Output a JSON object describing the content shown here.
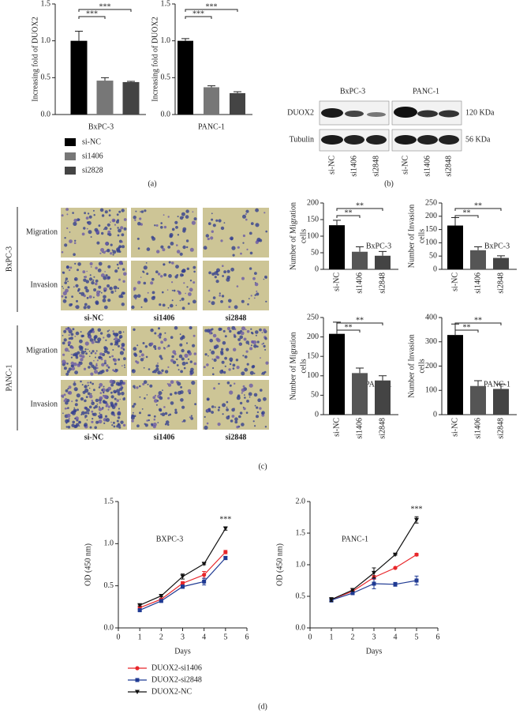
{
  "panels": [
    "(a)",
    "(b)",
    "(c)",
    "(d)"
  ],
  "legend_a": [
    {
      "name": "si-NC",
      "color": "#000000"
    },
    {
      "name": "si1406",
      "color": "#777777"
    },
    {
      "name": "si2828",
      "color": "#444444"
    }
  ],
  "legend_d": [
    {
      "name": "DUOX2-si1406",
      "color": "#e8262a",
      "marker": "circle"
    },
    {
      "name": "DUOX2-si2848",
      "color": "#1f3a93",
      "marker": "square"
    },
    {
      "name": "DUOX2-NC",
      "color": "#111111",
      "marker": "triangle-down"
    }
  ],
  "blot": {
    "cell_lines": [
      "BxPC-3",
      "PANC-1"
    ],
    "rows": [
      "DUOX2",
      "Tubulin"
    ],
    "sizes": [
      "120 KDa",
      "56 KDa"
    ],
    "lanes": [
      "si-NC",
      "si1406",
      "si2848",
      "si-NC",
      "si1406",
      "si2848"
    ]
  },
  "micro": {
    "groups": [
      "BxPC-3",
      "PANC-1"
    ],
    "rows": [
      "Migration",
      "Invasion"
    ],
    "columns": [
      "si-NC",
      "si1406",
      "si2848"
    ]
  },
  "chart_data": [
    {
      "type": "bar",
      "ylabel": "Increasing fold of DUOX2",
      "xlabel": "BxPC-3",
      "values": [
        1.0,
        0.46,
        0.44
      ],
      "errors": [
        0.13,
        0.04,
        0.01
      ],
      "colors": [
        "#000000",
        "#777777",
        "#444444"
      ],
      "ylim": [
        0,
        1.5
      ],
      "yticks": [
        {
          "value": 0,
          "label": "0.0"
        },
        0.5,
        {
          "value": 1,
          "label": "1.0"
        },
        1.5
      ],
      "comparisons": [
        {
          "between": [
            0,
            1
          ],
          "label": "***"
        },
        {
          "between": [
            0,
            2
          ],
          "label": "***"
        }
      ]
    },
    {
      "type": "bar",
      "ylabel": "Increasing fold of DUOX2",
      "xlabel": "PANC-1",
      "values": [
        1.0,
        0.37,
        0.29
      ],
      "errors": [
        0.03,
        0.02,
        0.02
      ],
      "colors": [
        "#000000",
        "#777777",
        "#444444"
      ],
      "ylim": [
        0,
        1.5
      ],
      "yticks": [
        {
          "value": 0,
          "label": "0.0"
        },
        0.5,
        {
          "value": 1,
          "label": "1.0"
        },
        1.5
      ],
      "comparisons": [
        {
          "between": [
            0,
            1
          ],
          "label": "***"
        },
        {
          "between": [
            0,
            2
          ],
          "label": "***"
        }
      ]
    },
    {
      "type": "bar",
      "ylabel": [
        "Number of Migration",
        "cells"
      ],
      "label": "BxPC-3",
      "categories": [
        "si-NC",
        "si1406",
        "si2848"
      ],
      "values": [
        133,
        53,
        41
      ],
      "errors": [
        15,
        15,
        13
      ],
      "colors": [
        "#000000",
        "#555555",
        "#444444"
      ],
      "ylim": [
        0,
        200
      ],
      "yticks": [
        0,
        50,
        100,
        150,
        200
      ],
      "comparisons": [
        {
          "between": [
            0,
            1
          ],
          "label": "**"
        },
        {
          "between": [
            0,
            2
          ],
          "label": "**"
        }
      ]
    },
    {
      "type": "bar",
      "ylabel": [
        "Number of Invasion",
        "cells"
      ],
      "label": "BxPC-3",
      "categories": [
        "si-NC",
        "si1406",
        "si2848"
      ],
      "values": [
        165,
        72,
        43
      ],
      "errors": [
        30,
        13,
        8
      ],
      "colors": [
        "#000000",
        "#555555",
        "#444444"
      ],
      "ylim": [
        0,
        250
      ],
      "yticks": [
        0,
        50,
        100,
        150,
        200,
        250
      ],
      "comparisons": [
        {
          "between": [
            0,
            1
          ],
          "label": "**"
        },
        {
          "between": [
            0,
            2
          ],
          "label": "**"
        }
      ]
    },
    {
      "type": "bar",
      "ylabel": [
        "Number of Migration",
        "cells"
      ],
      "label": "PANC-1",
      "categories": [
        "si-NC",
        "si1406",
        "si2848"
      ],
      "values": [
        208,
        107,
        88
      ],
      "errors": [
        30,
        13,
        12
      ],
      "colors": [
        "#000000",
        "#555555",
        "#444444"
      ],
      "ylim": [
        0,
        250
      ],
      "yticks": [
        0,
        50,
        100,
        150,
        200,
        250
      ],
      "comparisons": [
        {
          "between": [
            0,
            1
          ],
          "label": "**"
        },
        {
          "between": [
            0,
            2
          ],
          "label": "**"
        }
      ]
    },
    {
      "type": "bar",
      "ylabel": [
        "Number of Invasion",
        "cells"
      ],
      "label": "PANC-1",
      "categories": [
        "si-NC",
        "si1406",
        "si2848"
      ],
      "values": [
        328,
        118,
        106
      ],
      "errors": [
        45,
        22,
        20
      ],
      "colors": [
        "#000000",
        "#555555",
        "#444444"
      ],
      "ylim": [
        0,
        400
      ],
      "yticks": [
        0,
        100,
        200,
        300,
        400
      ],
      "comparisons": [
        {
          "between": [
            0,
            1
          ],
          "label": "**"
        },
        {
          "between": [
            0,
            2
          ],
          "label": "**"
        }
      ]
    },
    {
      "type": "line",
      "label": "BXPC-3",
      "xlabel": "Days",
      "ylabel": "OD (450 nm)",
      "x": [
        1,
        2,
        3,
        4,
        5
      ],
      "xlim": [
        0,
        6
      ],
      "xticks": [
        0,
        1,
        2,
        3,
        4,
        5,
        6
      ],
      "ylim": [
        0,
        1.5
      ],
      "yticks": [
        {
          "value": 0,
          "label": "0.0"
        },
        0.5,
        {
          "value": 1,
          "label": "1.0"
        },
        1.5
      ],
      "series": [
        {
          "values": [
            0.24,
            0.34,
            0.53,
            0.63,
            0.9
          ],
          "errors": [
            0.02,
            0.01,
            0.02,
            0.04,
            0.02
          ]
        },
        {
          "values": [
            0.21,
            0.32,
            0.49,
            0.55,
            0.83
          ],
          "errors": [
            0.01,
            0.01,
            0.02,
            0.04,
            0.02
          ]
        },
        {
          "values": [
            0.27,
            0.38,
            0.61,
            0.76,
            1.18
          ],
          "errors": [
            0.01,
            0.01,
            0.03,
            0.01,
            0.02
          ]
        }
      ],
      "annotations": [
        {
          "x": 5,
          "label": "***"
        }
      ]
    },
    {
      "type": "line",
      "label": "PANC-1",
      "xlabel": "Days",
      "ylabel": "OD (450 nm)",
      "x": [
        1,
        2,
        3,
        4,
        5
      ],
      "xlim": [
        0,
        6
      ],
      "xticks": [
        0,
        1,
        2,
        3,
        4,
        5,
        6
      ],
      "ylim": [
        0,
        2
      ],
      "yticks": [
        {
          "value": 0,
          "label": "0.0"
        },
        0.5,
        {
          "value": 1,
          "label": "1.0"
        },
        1.5,
        {
          "value": 2,
          "label": "2.0"
        }
      ],
      "series": [
        {
          "values": [
            0.45,
            0.58,
            0.8,
            0.95,
            1.16
          ],
          "errors": [
            0.02,
            0.02,
            0.03,
            0.01,
            0.02
          ]
        },
        {
          "values": [
            0.44,
            0.55,
            0.7,
            0.69,
            0.75
          ],
          "errors": [
            0.03,
            0.02,
            0.08,
            0.03,
            0.07
          ]
        },
        {
          "values": [
            0.45,
            0.6,
            0.87,
            1.16,
            1.71
          ],
          "errors": [
            0.03,
            0.02,
            0.08,
            0.01,
            0.05
          ]
        }
      ],
      "annotations": [
        {
          "x": 5,
          "label": "***"
        }
      ]
    }
  ]
}
